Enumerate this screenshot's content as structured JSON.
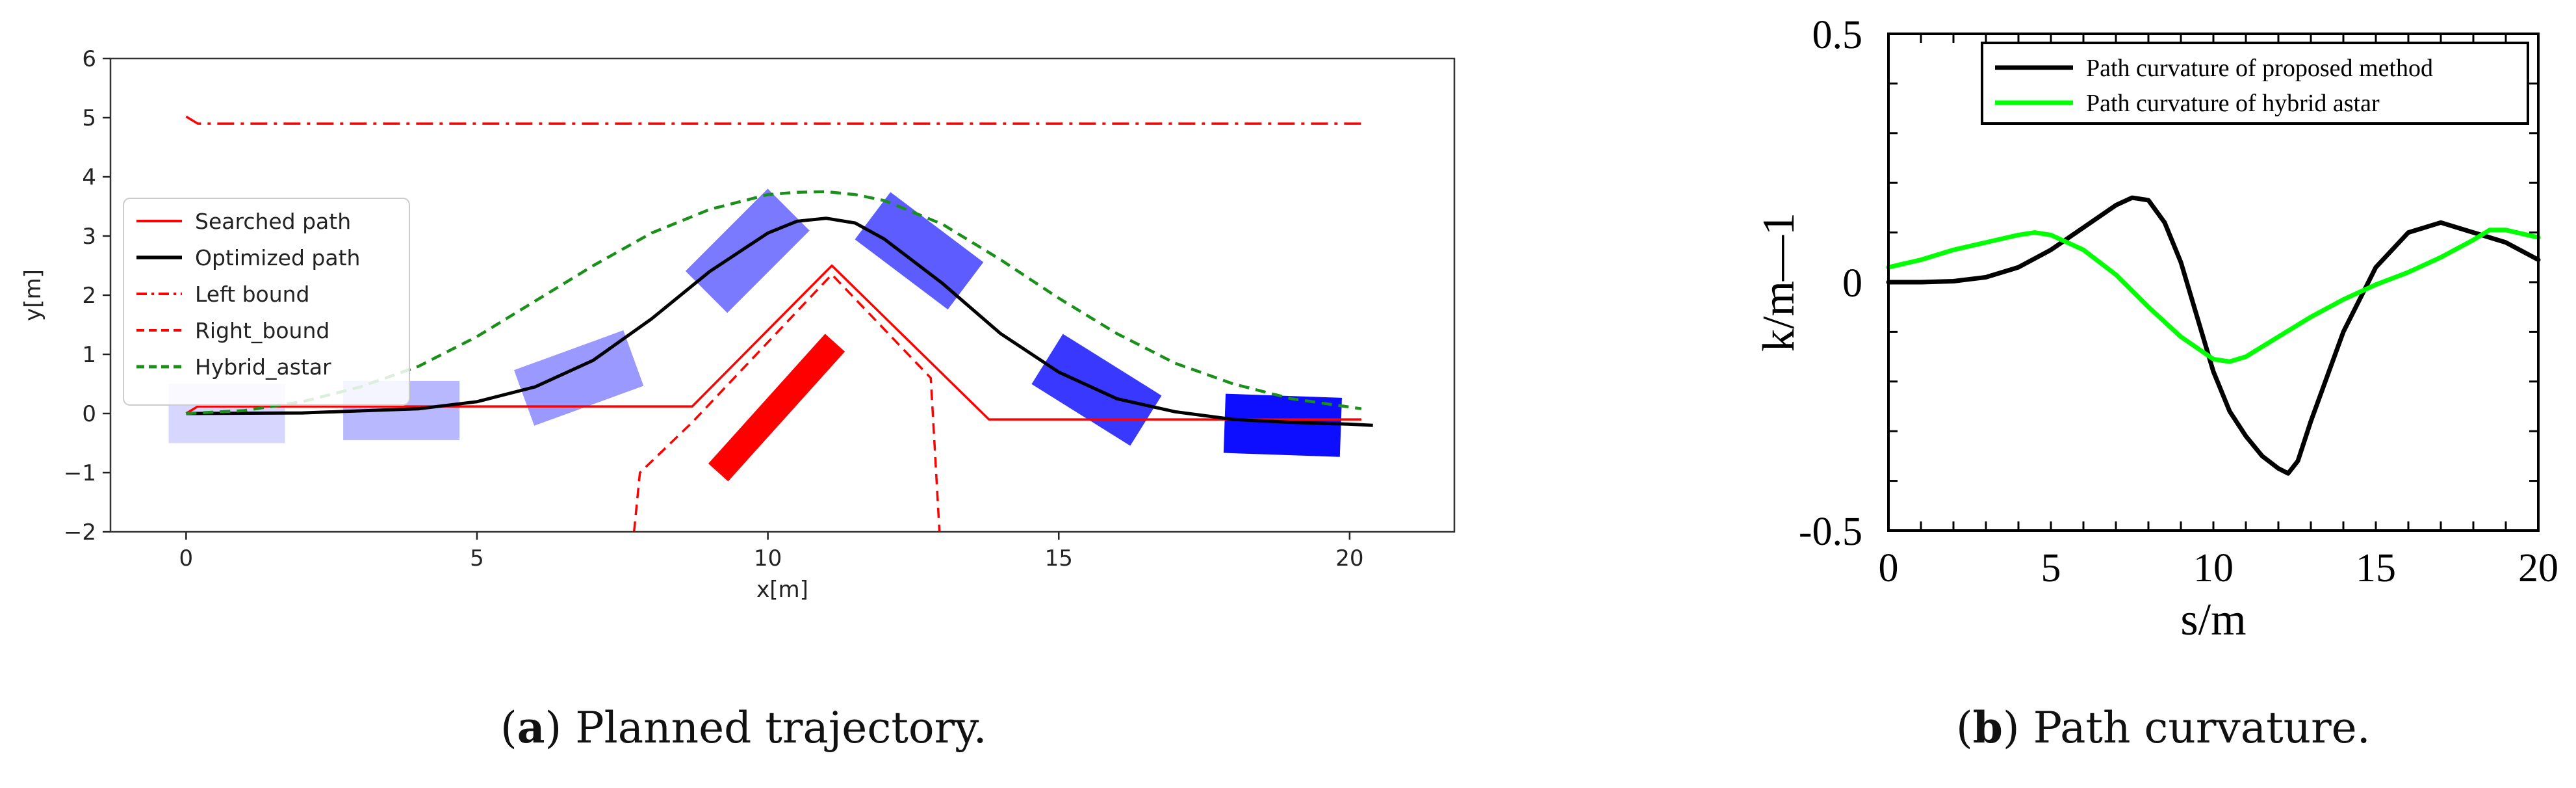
{
  "charts": [
    {
      "type": "line",
      "panel": "a",
      "xlabel": "x[m]",
      "ylabel": "y[m]",
      "xlim": [
        -1.3,
        21.8
      ],
      "ylim": [
        -2,
        6
      ],
      "xticks": [
        "0",
        "5",
        "10",
        "15",
        "20"
      ],
      "yticks": [
        "−2",
        "−1",
        "0",
        "1",
        "2",
        "3",
        "4",
        "5",
        "6"
      ],
      "legend_placement": "middle-left",
      "colors": {
        "searched": "#ff0000",
        "optimized": "#000000",
        "left_bound": "#ff0000",
        "right_bound": "#ff0000",
        "hybrid": "#1a8f1a",
        "obstacle": "#ff0000",
        "vehicle": "#0000ff"
      }
    },
    {
      "type": "line",
      "panel": "b",
      "xlabel": "s/m",
      "ylabel": "k/m—1",
      "xlim": [
        0,
        20
      ],
      "ylim": [
        -0.5,
        0.5
      ],
      "xticks": [
        "0",
        "5",
        "10",
        "15",
        "20"
      ],
      "yticks": [
        "0.5",
        "0",
        "-0.5"
      ],
      "legend_placement": "top-right",
      "colors": {
        "proposed": "#000000",
        "hybrid": "#00ff00"
      }
    }
  ],
  "chart_data": [
    {
      "type": "line",
      "series": [
        {
          "name": "Searched path",
          "style": "solid",
          "x": [
            0,
            0.2,
            8.7,
            11.1,
            13.8,
            20.2
          ],
          "y": [
            0,
            0.12,
            0.12,
            2.5,
            -0.1,
            -0.1
          ]
        },
        {
          "name": "Optimized path",
          "style": "solid",
          "x": [
            0,
            2,
            4,
            5,
            6,
            7,
            8,
            9,
            10,
            10.5,
            11,
            11.5,
            12,
            13,
            14,
            15,
            16,
            17,
            18,
            19,
            20,
            20.4
          ],
          "y": [
            0,
            0.01,
            0.08,
            0.2,
            0.45,
            0.9,
            1.6,
            2.4,
            3.05,
            3.25,
            3.3,
            3.22,
            2.95,
            2.2,
            1.35,
            0.7,
            0.25,
            0.03,
            -0.1,
            -0.15,
            -0.18,
            -0.2
          ]
        },
        {
          "name": "Left bound",
          "style": "dashdot",
          "x": [
            0,
            0.2,
            20.2
          ],
          "y": [
            5.02,
            4.9,
            4.9
          ]
        },
        {
          "name": "Right_bound",
          "style": "dashed",
          "segments": [
            {
              "x": [
                7.7,
                7.8,
                8.7,
                11.1,
                12.8,
                12.95
              ],
              "y": [
                -2,
                -1,
                -0.15,
                2.35,
                0.6,
                -2
              ]
            }
          ]
        },
        {
          "name": "Hybrid_astar",
          "style": "dashed",
          "x": [
            0,
            1,
            2,
            3,
            4,
            5,
            6,
            7,
            8,
            9,
            10,
            10.5,
            11,
            11.5,
            12,
            13,
            14,
            15,
            16,
            17,
            18,
            19,
            20.2
          ],
          "y": [
            0,
            0.05,
            0.2,
            0.45,
            0.8,
            1.3,
            1.9,
            2.5,
            3.05,
            3.45,
            3.7,
            3.74,
            3.75,
            3.7,
            3.6,
            3.2,
            2.6,
            1.95,
            1.35,
            0.85,
            0.5,
            0.25,
            0.08
          ]
        }
      ],
      "vehicles": [
        {
          "cx": 0.7,
          "cy": 0,
          "length": 2.0,
          "width": 1.0,
          "angle": 0,
          "opacity": 0.16
        },
        {
          "cx": 3.7,
          "cy": 0.05,
          "length": 2.0,
          "width": 1.0,
          "angle": 0,
          "opacity": 0.28
        },
        {
          "cx": 6.75,
          "cy": 0.6,
          "length": 2.0,
          "width": 1.0,
          "angle": 20,
          "opacity": 0.4
        },
        {
          "cx": 9.65,
          "cy": 2.75,
          "length": 2.0,
          "width": 1.0,
          "angle": 45,
          "opacity": 0.52
        },
        {
          "cx": 12.6,
          "cy": 2.75,
          "length": 2.0,
          "width": 1.0,
          "angle": -37,
          "opacity": 0.64
        },
        {
          "cx": 15.65,
          "cy": 0.4,
          "length": 2.0,
          "width": 1.0,
          "angle": -32,
          "opacity": 0.78
        },
        {
          "cx": 18.85,
          "cy": -0.2,
          "length": 2.0,
          "width": 1.0,
          "angle": -2,
          "opacity": 0.95
        }
      ],
      "obstacle": {
        "cx": 10.15,
        "cy": 0.1,
        "length": 3.0,
        "width": 0.45,
        "angle": 48
      }
    },
    {
      "type": "line",
      "series": [
        {
          "name": "Path curvature of proposed method",
          "x": [
            0,
            1,
            2,
            3,
            4,
            5,
            6,
            7,
            7.5,
            8,
            8.5,
            9,
            9.5,
            10,
            10.5,
            11,
            11.5,
            12,
            12.3,
            12.6,
            13,
            14,
            15,
            16,
            17,
            18,
            19,
            20
          ],
          "y": [
            0,
            0,
            0.002,
            0.01,
            0.03,
            0.065,
            0.11,
            0.155,
            0.17,
            0.165,
            0.12,
            0.04,
            -0.07,
            -0.18,
            -0.26,
            -0.31,
            -0.35,
            -0.375,
            -0.385,
            -0.36,
            -0.28,
            -0.1,
            0.03,
            0.1,
            0.12,
            0.1,
            0.08,
            0.045
          ]
        },
        {
          "name": "Path curvature of hybrid astar",
          "x": [
            0,
            1,
            2,
            3,
            4,
            4.5,
            5,
            6,
            7,
            8,
            9,
            10,
            10.5,
            11,
            12,
            13,
            14,
            15,
            16,
            17,
            18,
            18.5,
            19,
            20
          ],
          "y": [
            0.03,
            0.045,
            0.065,
            0.08,
            0.095,
            0.1,
            0.095,
            0.065,
            0.015,
            -0.05,
            -0.11,
            -0.155,
            -0.16,
            -0.15,
            -0.11,
            -0.07,
            -0.035,
            -0.005,
            0.02,
            0.05,
            0.085,
            0.105,
            0.105,
            0.09
          ]
        }
      ]
    }
  ],
  "panel_a": {
    "xlabel": "x[m]",
    "ylabel": "y[m]",
    "legend": [
      "Searched path",
      "Optimized path",
      "Left bound",
      "Right_bound",
      "Hybrid_astar"
    ]
  },
  "panel_b": {
    "xlabel": "s/m",
    "ylabel": "k/m—1",
    "legend": [
      "Path curvature of proposed method",
      "Path curvature of hybrid astar"
    ]
  },
  "captions": {
    "a_letter": "a",
    "a_text": " Planned trajectory.",
    "b_letter": "b",
    "b_text": " Path curvature."
  }
}
